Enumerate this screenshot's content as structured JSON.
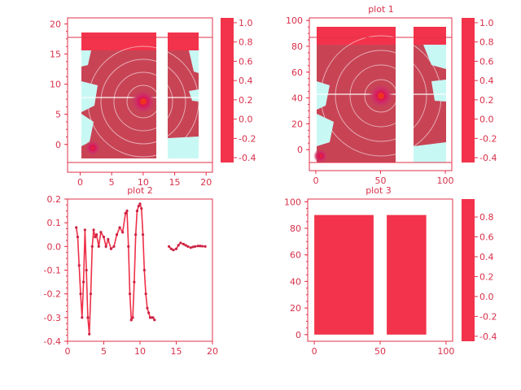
{
  "colors": {
    "accent": "#ee3048",
    "bar_fill": "#f2334b",
    "heat_low": "#cc4455",
    "heat_high": "#dd1155",
    "hot_spot": "#ee3322",
    "cyan_fill": "#c8f8f4"
  },
  "chart_data": [
    {
      "type": "heatmap",
      "title": "",
      "xlabel": "",
      "ylabel": "",
      "xlim": [
        -2,
        21
      ],
      "ylim": [
        -3,
        21
      ],
      "xticks": [
        "0",
        "5",
        "10",
        "15",
        "20"
      ],
      "yticks": [
        "0",
        "5",
        "10",
        "15",
        "20"
      ],
      "colorbar": {
        "ticks": [
          "1.0",
          "0.8",
          "0.6",
          "0.4",
          "0.2",
          "0.0",
          "-0.2",
          "-0.4"
        ],
        "range": [
          -0.45,
          1.05
        ]
      },
      "hot_spots": [
        {
          "x": 10,
          "y": 7.5
        },
        {
          "x": 2,
          "y": 0
        }
      ],
      "gap_x": [
        12,
        14
      ]
    },
    {
      "type": "heatmap",
      "title": "plot 1",
      "xlabel": "",
      "ylabel": "",
      "xlim": [
        -5,
        105
      ],
      "ylim": [
        -10,
        102
      ],
      "xticks": [
        "0",
        "50",
        "100"
      ],
      "yticks": [
        "0",
        "20",
        "40",
        "60",
        "80",
        "100"
      ],
      "colorbar": {
        "ticks": [
          "1.0",
          "0.8",
          "0.6",
          "0.4",
          "0.2",
          "0.0",
          "-0.2",
          "-0.4"
        ],
        "range": [
          -0.45,
          1.05
        ]
      },
      "hot_spots": [
        {
          "x": 50,
          "y": 44
        },
        {
          "x": 5,
          "y": -3
        }
      ],
      "gap_x": [
        62,
        75
      ]
    },
    {
      "type": "line",
      "title": "plot 2",
      "xlabel": "",
      "ylabel": "",
      "xlim": [
        0,
        20
      ],
      "ylim": [
        -0.4,
        0.2
      ],
      "xticks": [
        "0",
        "5",
        "10",
        "15",
        "20"
      ],
      "yticks": [
        "0.2",
        "0.1",
        "0.0",
        "-0.1",
        "-0.2",
        "-0.3",
        "-0.4"
      ],
      "series": [
        {
          "name": "",
          "x": [
            1.2,
            1.4,
            1.6,
            1.8,
            2.0,
            2.2,
            2.4,
            2.6,
            2.8,
            3.0,
            3.2,
            3.4,
            3.6,
            3.8,
            4.0,
            4.3,
            4.6,
            5.0,
            5.3,
            5.6,
            6.0,
            6.4,
            6.8,
            7.2,
            7.6,
            8.0,
            8.2,
            8.4,
            8.6,
            8.8,
            9.0,
            9.2,
            9.4,
            9.6,
            9.8,
            10.0,
            10.2,
            10.4,
            10.6,
            10.8,
            11.0,
            11.2,
            11.4,
            11.6,
            11.8,
            12.0
          ],
          "y": [
            0.08,
            0.04,
            -0.08,
            -0.2,
            -0.3,
            -0.15,
            0.07,
            -0.1,
            -0.3,
            -0.37,
            -0.2,
            0.0,
            0.07,
            0.04,
            0.05,
            0.0,
            0.06,
            0.04,
            0.0,
            0.03,
            -0.01,
            0.0,
            0.05,
            0.08,
            0.06,
            0.14,
            0.15,
            0.0,
            -0.2,
            -0.31,
            -0.3,
            -0.15,
            0.05,
            0.15,
            0.17,
            0.18,
            0.16,
            0.05,
            -0.1,
            -0.2,
            -0.26,
            -0.28,
            -0.3,
            -0.3,
            -0.3,
            -0.31
          ]
        },
        {
          "name": "",
          "x": [
            14.0,
            14.3,
            14.6,
            15.0,
            15.3,
            15.6,
            16.0,
            16.3,
            16.6,
            17.0,
            17.3,
            17.6,
            18.0,
            18.3,
            18.6,
            19.0
          ],
          "y": [
            0.0,
            -0.01,
            -0.015,
            -0.01,
            0.005,
            0.015,
            0.01,
            0.005,
            0.0,
            -0.005,
            -0.002,
            0.0,
            0.002,
            0.002,
            0.001,
            0.0
          ]
        }
      ]
    },
    {
      "type": "bar",
      "title": "plot 3",
      "xlabel": "",
      "ylabel": "",
      "xlim": [
        -5,
        105
      ],
      "ylim": [
        -5,
        102
      ],
      "xticks": [
        "0",
        "50",
        "100"
      ],
      "yticks": [
        "0",
        "20",
        "40",
        "60",
        "80",
        "100"
      ],
      "bars": [
        {
          "x0": 0,
          "x1": 45,
          "value": 90
        },
        {
          "x0": 55,
          "x1": 85,
          "value": 90
        }
      ],
      "colorbar": {
        "ticks": [
          "0.8",
          "0.6",
          "0.4",
          "0.2",
          "0.0",
          "-0.2",
          "-0.4"
        ],
        "range": [
          -0.45,
          0.98
        ]
      }
    }
  ]
}
